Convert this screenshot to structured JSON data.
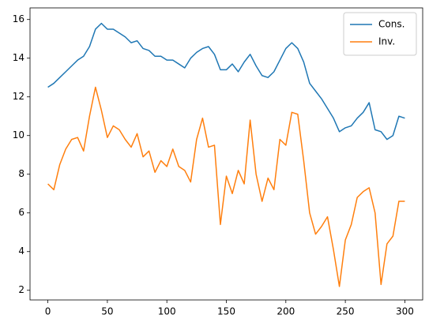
{
  "chart_data": {
    "type": "line",
    "x": [
      0,
      5,
      10,
      15,
      20,
      25,
      30,
      35,
      40,
      45,
      50,
      55,
      60,
      65,
      70,
      75,
      80,
      85,
      90,
      95,
      100,
      105,
      110,
      115,
      120,
      125,
      130,
      135,
      140,
      145,
      150,
      155,
      160,
      165,
      170,
      175,
      180,
      185,
      190,
      195,
      200,
      205,
      210,
      215,
      220,
      225,
      230,
      235,
      240,
      245,
      250,
      255,
      260,
      265,
      270,
      275,
      280,
      285,
      290,
      295,
      300
    ],
    "series": [
      {
        "name": "Cons.",
        "color": "#1f77b4",
        "values": [
          12.5,
          12.7,
          13.0,
          13.3,
          13.6,
          13.9,
          14.1,
          14.6,
          15.5,
          15.8,
          15.5,
          15.5,
          15.3,
          15.1,
          14.8,
          14.9,
          14.5,
          14.4,
          14.1,
          14.1,
          13.9,
          13.9,
          13.7,
          13.5,
          14.0,
          14.3,
          14.5,
          14.6,
          14.2,
          13.4,
          13.4,
          13.7,
          13.3,
          13.8,
          14.2,
          13.6,
          13.1,
          13.0,
          13.3,
          13.9,
          14.5,
          14.8,
          14.5,
          13.8,
          12.7,
          12.3,
          11.9,
          11.4,
          10.9,
          10.2,
          10.4,
          10.5,
          10.9,
          11.2,
          11.7,
          10.3,
          10.2,
          9.8,
          10.0,
          11.0,
          10.9
        ]
      },
      {
        "name": "Inv.",
        "color": "#ff7f0e",
        "values": [
          7.5,
          7.2,
          8.5,
          9.3,
          9.8,
          9.9,
          9.2,
          11.0,
          12.5,
          11.3,
          9.9,
          10.5,
          10.3,
          9.8,
          9.4,
          10.1,
          8.9,
          9.2,
          8.1,
          8.7,
          8.4,
          9.3,
          8.4,
          8.2,
          7.6,
          9.8,
          10.9,
          9.4,
          9.5,
          5.4,
          7.9,
          7.0,
          8.2,
          7.5,
          10.8,
          8.0,
          6.6,
          7.8,
          7.2,
          9.8,
          9.5,
          11.2,
          11.1,
          8.7,
          6.0,
          4.9,
          5.3,
          5.8,
          4.1,
          2.2,
          4.6,
          5.4,
          6.8,
          7.1,
          7.3,
          6.0,
          2.3,
          4.4,
          4.8,
          6.6,
          6.6
        ]
      }
    ],
    "xlim": [
      -15,
      315
    ],
    "xticks": [
      0,
      50,
      100,
      150,
      200,
      250,
      300
    ],
    "ylim": [
      1.5,
      16.6
    ],
    "yticks": [
      2,
      4,
      6,
      8,
      10,
      12,
      14,
      16
    ],
    "legend": "upper right"
  }
}
